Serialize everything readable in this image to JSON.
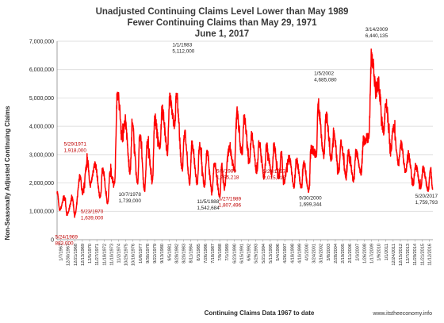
{
  "chart_data": {
    "type": "line",
    "title": [
      "Unadjusted Continuing Claims Level Lower than May 1989",
      "Fewer Continuing Claims than May 29, 1971",
      "June 1, 2017"
    ],
    "xlabel": "Continuing Claims Data 1967 to date",
    "ylabel": "Non-Seasonally Adjusted Continuing Claims",
    "ylim": [
      0,
      7000000
    ],
    "y_ticks": [
      "0",
      "1,000,000",
      "2,000,000",
      "3,000,000",
      "4,000,000",
      "5,000,000",
      "6,000,000",
      "7,000,000"
    ],
    "x_ticks": [
      "1/7/1967",
      "12/30/1967",
      "12/21/1968",
      "12/13/1969",
      "12/5/1970",
      "11/27/1971",
      "11/18/1972",
      "11/10/1973",
      "11/2/1974",
      "10/25/1975",
      "10/16/1976",
      "10/8/1977",
      "9/30/1978",
      "9/22/1979",
      "9/13/1980",
      "9/5/1981",
      "8/28/1982",
      "8/20/1983",
      "8/11/1984",
      "8/3/1985",
      "7/26/1986",
      "7/18/1987",
      "7/9/1988",
      "7/1/1989",
      "6/23/1990",
      "6/15/1991",
      "6/6/1992",
      "5/29/1993",
      "5/21/1994",
      "5/13/1995",
      "5/4/1996",
      "4/26/1997",
      "4/18/1998",
      "4/10/1999",
      "4/1/2000",
      "3/24/2001",
      "3/16/2002",
      "3/8/2003",
      "2/28/2004",
      "2/19/2005",
      "2/11/2006",
      "2/3/2007",
      "1/26/2008",
      "1/17/2009",
      "1/9/2010",
      "1/1/2011",
      "12/24/2011",
      "12/15/2012",
      "12/7/2013",
      "11/29/2014",
      "11/21/2015",
      "11/12/2016"
    ],
    "grid": "horizontal",
    "legend": "none",
    "series": [
      {
        "color": "#ff0000",
        "x_start": 1967.0,
        "x_end": 2017.42,
        "anchors": [
          [
            1967.0,
            1700000
          ],
          [
            1967.35,
            1050000
          ],
          [
            1968.0,
            1500000
          ],
          [
            1968.35,
            900000
          ],
          [
            1969.05,
            1450000
          ],
          [
            1969.39,
            883000
          ],
          [
            1970.1,
            2250000
          ],
          [
            1970.39,
            1639000
          ],
          [
            1971.1,
            2800000
          ],
          [
            1971.41,
            1918000
          ],
          [
            1972.1,
            2650000
          ],
          [
            1972.8,
            1500000
          ],
          [
            1973.1,
            2500000
          ],
          [
            1973.8,
            1300000
          ],
          [
            1974.1,
            2350000
          ],
          [
            1974.7,
            2000000
          ],
          [
            1975.1,
            5200000
          ],
          [
            1975.8,
            3600000
          ],
          [
            1976.1,
            4200000
          ],
          [
            1976.8,
            2400000
          ],
          [
            1977.1,
            4000000
          ],
          [
            1977.8,
            2000000
          ],
          [
            1978.1,
            3700000
          ],
          [
            1978.75,
            1739000
          ],
          [
            1979.1,
            3400000
          ],
          [
            1979.8,
            2100000
          ],
          [
            1980.1,
            4200000
          ],
          [
            1980.8,
            3300000
          ],
          [
            1981.1,
            4600000
          ],
          [
            1981.8,
            3100000
          ],
          [
            1982.1,
            4950000
          ],
          [
            1982.8,
            4000000
          ],
          [
            1983.0,
            5112000
          ],
          [
            1983.8,
            2500000
          ],
          [
            1984.1,
            3800000
          ],
          [
            1984.8,
            2000000
          ],
          [
            1985.1,
            3400000
          ],
          [
            1985.8,
            2000000
          ],
          [
            1986.1,
            3300000
          ],
          [
            1986.8,
            1900000
          ],
          [
            1987.1,
            3100000
          ],
          [
            1987.8,
            1700000
          ],
          [
            1988.1,
            2700000
          ],
          [
            1988.84,
            1542684
          ],
          [
            1989.1,
            2600000
          ],
          [
            1989.34,
            1995218
          ],
          [
            1989.41,
            1807496
          ],
          [
            1990.1,
            3200000
          ],
          [
            1990.8,
            2500000
          ],
          [
            1991.1,
            4500000
          ],
          [
            1991.8,
            3000000
          ],
          [
            1992.1,
            4300000
          ],
          [
            1992.8,
            2800000
          ],
          [
            1993.1,
            3700000
          ],
          [
            1993.8,
            2400000
          ],
          [
            1994.1,
            3400000
          ],
          [
            1994.8,
            2200000
          ],
          [
            1995.1,
            3300000
          ],
          [
            1995.8,
            2300000
          ],
          [
            1996.1,
            3300000
          ],
          [
            1996.8,
            2200000
          ],
          [
            1997.1,
            3100000
          ],
          [
            1997.39,
            2015018
          ],
          [
            1998.1,
            2900000
          ],
          [
            1998.8,
            1900000
          ],
          [
            1999.1,
            2800000
          ],
          [
            1999.8,
            1850000
          ],
          [
            2000.1,
            2700000
          ],
          [
            2000.75,
            1699344
          ],
          [
            2001.1,
            3200000
          ],
          [
            2001.8,
            3000000
          ],
          [
            2002.01,
            4685080
          ],
          [
            2002.8,
            3000000
          ],
          [
            2003.1,
            4400000
          ],
          [
            2003.8,
            2800000
          ],
          [
            2004.1,
            3800000
          ],
          [
            2004.8,
            2400000
          ],
          [
            2005.1,
            3400000
          ],
          [
            2005.8,
            2200000
          ],
          [
            2006.1,
            3100000
          ],
          [
            2006.8,
            2100000
          ],
          [
            2007.1,
            3100000
          ],
          [
            2007.8,
            2300000
          ],
          [
            2008.1,
            3500000
          ],
          [
            2008.8,
            3600000
          ],
          [
            2009.2,
            6440135
          ],
          [
            2009.8,
            5300000
          ],
          [
            2010.1,
            5500000
          ],
          [
            2010.8,
            3800000
          ],
          [
            2011.1,
            4800000
          ],
          [
            2011.8,
            3200000
          ],
          [
            2012.1,
            4000000
          ],
          [
            2012.8,
            2700000
          ],
          [
            2013.1,
            3400000
          ],
          [
            2013.8,
            2400000
          ],
          [
            2014.1,
            3000000
          ],
          [
            2014.8,
            2000000
          ],
          [
            2015.1,
            2600000
          ],
          [
            2015.8,
            1850000
          ],
          [
            2016.1,
            2500000
          ],
          [
            2016.8,
            1750000
          ],
          [
            2017.1,
            2500000
          ],
          [
            2017.38,
            1759793
          ]
        ]
      }
    ],
    "annotations": [
      {
        "date": "5/29/1971",
        "value": "1,918,000",
        "x": 1971.41,
        "y": 1918000,
        "color": "#c00000"
      },
      {
        "date": "5/23/1970",
        "value": "1,639,000",
        "x": 1970.39,
        "y": 1639000,
        "color": "#c00000"
      },
      {
        "date": "5/24/1969",
        "value": "883,000",
        "x": 1969.39,
        "y": 883000,
        "color": "#c00000"
      },
      {
        "date": "10/7/1978",
        "value": "1,739,000",
        "x": 1978.75,
        "y": 1739000,
        "color": "#222222"
      },
      {
        "date": "1/1/1983",
        "value": "5,112,000",
        "x": 1983.0,
        "y": 5112000,
        "color": "#222222"
      },
      {
        "date": "11/5/1988",
        "value": "1,542,684",
        "x": 1988.84,
        "y": 1542684,
        "color": "#222222"
      },
      {
        "date": "5/6/1989",
        "value": "1,995,218",
        "x": 1989.34,
        "y": 1995218,
        "color": "#c00000"
      },
      {
        "date": "5/27/1989",
        "value": "1,807,496",
        "x": 1989.41,
        "y": 1807496,
        "color": "#c00000"
      },
      {
        "date": "5/24/1997",
        "value": "2,015,018",
        "x": 1997.39,
        "y": 2015018,
        "color": "#c00000"
      },
      {
        "date": "9/30/2000",
        "value": "1,699,344",
        "x": 2000.75,
        "y": 1699344,
        "color": "#222222"
      },
      {
        "date": "1/5/2002",
        "value": "4,685,080",
        "x": 2002.01,
        "y": 4685080,
        "color": "#222222"
      },
      {
        "date": "3/14/2009",
        "value": "6,440,135",
        "x": 2009.2,
        "y": 6440135,
        "color": "#222222"
      },
      {
        "date": "5/20/2017",
        "value": "1,759,793",
        "x": 2017.38,
        "y": 1759793,
        "color": "#222222"
      }
    ],
    "watermark": "www.itstheeconomy.info"
  }
}
